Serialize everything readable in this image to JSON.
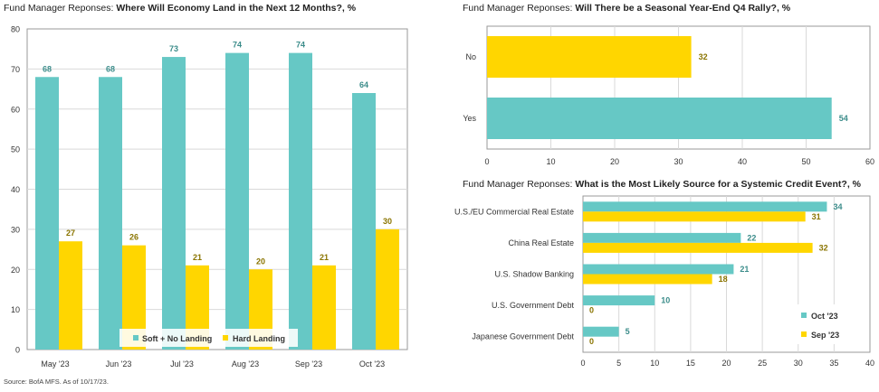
{
  "colors": {
    "teal": "#66C8C5",
    "yellow": "#FFD600",
    "teal_label": "#3B8C8A",
    "yellow_label": "#8A7400",
    "grid": "#D9D9D9",
    "plot_border": "#999999",
    "axis_text": "#333333"
  },
  "source": "Source: BofA MFS. As of 10/17/23.",
  "chart_data": [
    {
      "type": "bar",
      "title_prefix": "Fund Manager Reponses: ",
      "title": "Where Will Economy Land in the Next 12 Months?, %",
      "categories": [
        "May '23",
        "Jun '23",
        "Jul '23",
        "Aug '23",
        "Sep '23",
        "Oct '23"
      ],
      "series": [
        {
          "name": "Soft + No Landing",
          "values": [
            68,
            68,
            73,
            74,
            74,
            64
          ]
        },
        {
          "name": "Hard Landing",
          "values": [
            27,
            26,
            21,
            20,
            21,
            30
          ]
        }
      ],
      "ylim": [
        0,
        80
      ],
      "yticks": [
        "0",
        "10",
        "20",
        "30",
        "40",
        "50",
        "60",
        "70",
        "80"
      ],
      "grid": true,
      "legend": "bottom-center"
    },
    {
      "type": "bar",
      "orientation": "horizontal",
      "title_prefix": "Fund Manager Reponses: ",
      "title": "Will There be a Seasonal Year-End Q4 Rally?, %",
      "categories": [
        "No",
        "Yes"
      ],
      "values": [
        32,
        54
      ],
      "xlim": [
        0,
        60
      ],
      "xticks": [
        "0",
        "10",
        "20",
        "30",
        "40",
        "50",
        "60"
      ],
      "grid": true
    },
    {
      "type": "bar",
      "orientation": "horizontal",
      "title_prefix": "Fund Manager Reponses: ",
      "title": "What is the Most Likely Source for a Systemic Credit Event?, %",
      "categories": [
        "U.S./EU Commercial Real Estate",
        "China Real Estate",
        "U.S. Shadow Banking",
        "U.S. Government Debt",
        "Japanese Government Debt"
      ],
      "series": [
        {
          "name": "Oct '23",
          "values": [
            34,
            22,
            21,
            10,
            5
          ]
        },
        {
          "name": "Sep '23",
          "values": [
            31,
            32,
            18,
            0,
            0
          ]
        }
      ],
      "xlim": [
        0,
        40
      ],
      "xticks": [
        "0",
        "5",
        "10",
        "15",
        "20",
        "25",
        "30",
        "35",
        "40"
      ],
      "grid": true,
      "legend": "bottom-right"
    }
  ]
}
